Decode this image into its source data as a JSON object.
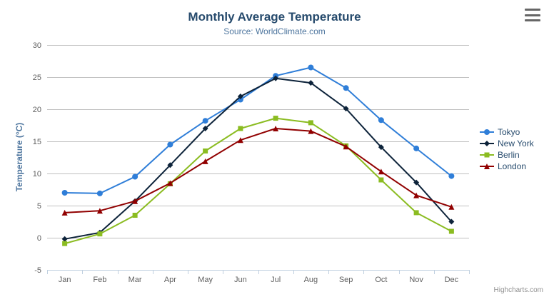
{
  "chart": {
    "credits": "Highcharts.com"
  },
  "colors": {
    "title": "#274b6d",
    "subtitle": "#4d759e",
    "axis_label": "#606060",
    "axis_line": "#c0d0e0",
    "grid": "#c0c0c0",
    "legend_text": "#274b6d",
    "credits": "#909090",
    "menu_icon": "#666666"
  },
  "chart_data": {
    "type": "line",
    "title": "Monthly Average Temperature",
    "subtitle": "Source: WorldClimate.com",
    "xlabel": "",
    "ylabel": "Temperature (°C)",
    "ylim": [
      -5,
      30
    ],
    "yticks": [
      -5,
      0,
      5,
      10,
      15,
      20,
      25,
      30
    ],
    "grid": true,
    "legend_position": "right",
    "categories": [
      "Jan",
      "Feb",
      "Mar",
      "Apr",
      "May",
      "Jun",
      "Jul",
      "Aug",
      "Sep",
      "Oct",
      "Nov",
      "Dec"
    ],
    "series": [
      {
        "name": "Tokyo",
        "color": "#2f7ed8",
        "marker": "circle",
        "values": [
          7.0,
          6.9,
          9.5,
          14.5,
          18.2,
          21.5,
          25.2,
          26.5,
          23.3,
          18.3,
          13.9,
          9.6
        ]
      },
      {
        "name": "New York",
        "color": "#0d233a",
        "marker": "diamond",
        "values": [
          -0.2,
          0.8,
          5.7,
          11.3,
          17.0,
          22.0,
          24.8,
          24.1,
          20.1,
          14.1,
          8.6,
          2.5
        ]
      },
      {
        "name": "Berlin",
        "color": "#8bbc21",
        "marker": "square",
        "values": [
          -0.9,
          0.6,
          3.5,
          8.4,
          13.5,
          17.0,
          18.6,
          17.9,
          14.3,
          9.0,
          3.9,
          1.0
        ]
      },
      {
        "name": "London",
        "color": "#910000",
        "marker": "triangle",
        "values": [
          3.9,
          4.2,
          5.7,
          8.5,
          11.9,
          15.2,
          17.0,
          16.6,
          14.2,
          10.3,
          6.6,
          4.8
        ]
      }
    ]
  }
}
